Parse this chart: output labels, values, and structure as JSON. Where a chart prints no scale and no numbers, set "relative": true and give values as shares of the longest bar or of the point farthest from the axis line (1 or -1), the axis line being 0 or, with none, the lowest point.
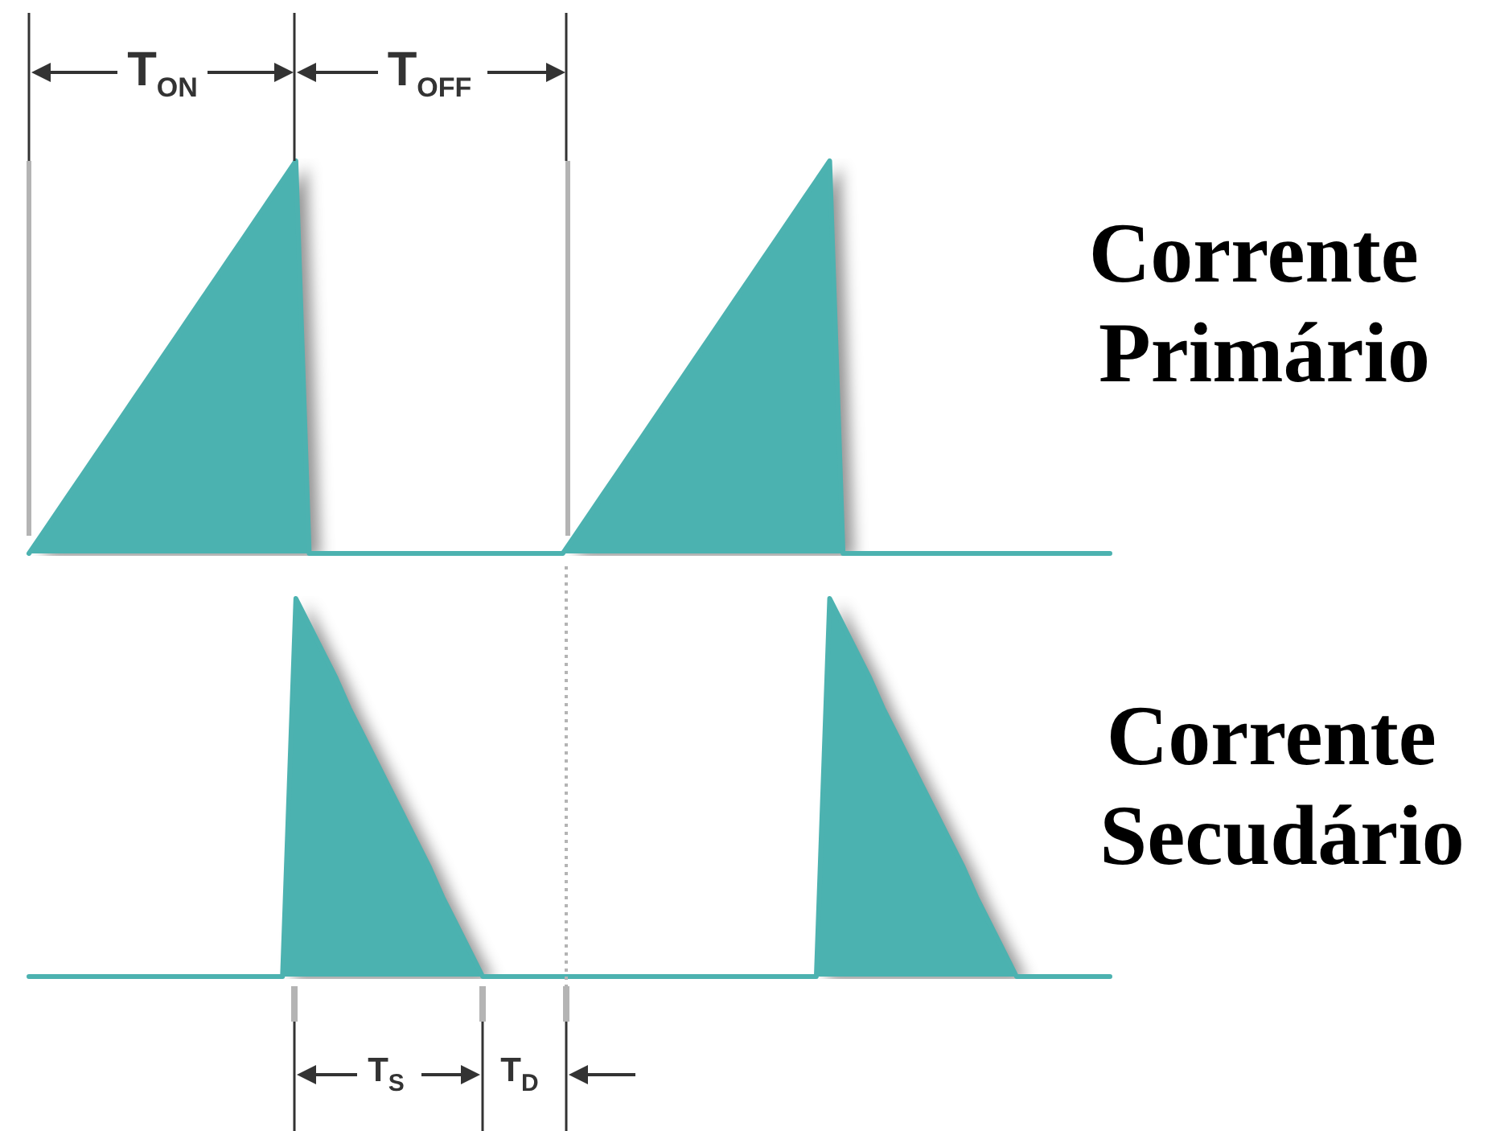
{
  "chart_data": [
    {
      "type": "area",
      "relative": true,
      "categories": [
        null,
        null,
        null,
        null,
        null,
        null,
        null,
        null,
        null,
        null,
        null,
        null,
        null,
        null,
        null,
        null,
        null,
        null,
        null,
        null,
        null,
        null,
        null,
        null,
        null,
        null,
        null,
        null,
        null,
        null,
        null,
        null,
        null,
        null,
        null,
        null,
        null,
        null,
        null,
        null,
        null,
        null,
        null,
        null,
        null,
        null,
        null,
        null,
        null,
        null,
        null,
        null,
        null,
        null,
        null,
        null,
        null,
        null,
        null,
        null,
        null,
        null,
        null,
        null,
        null,
        null,
        null,
        null,
        null,
        null,
        null,
        null,
        null,
        null,
        null,
        null,
        null,
        null,
        null,
        null,
        null,
        null
      ],
      "series": [
        {
          "name": "Corrente Primário",
          "color": "#4cb2b0",
          "values": [
            0,
            0.05,
            0.1,
            0.15,
            0.2,
            0.25,
            0.3,
            0.35,
            0.4,
            0.45,
            0.5,
            0.55,
            0.6,
            0.65,
            0.7,
            0.75,
            0.8,
            0.85,
            0.9,
            0.95,
            1,
            0,
            0,
            0,
            0,
            0,
            0,
            0,
            0,
            0,
            0,
            0,
            0,
            0,
            0,
            0,
            0,
            0,
            0,
            0,
            0,
            0.05,
            0.1,
            0.15,
            0.2,
            0.25,
            0.3,
            0.35,
            0.4,
            0.45,
            0.5,
            0.55,
            0.6,
            0.65,
            0.7,
            0.75,
            0.8,
            0.85,
            0.9,
            0.95,
            1,
            0,
            0,
            0,
            0,
            0,
            0,
            0,
            0,
            0,
            0,
            0,
            0,
            0,
            0,
            0,
            0,
            0,
            0,
            0,
            0,
            0
          ]
        }
      ],
      "annotations": [
        "T$_{ON}$",
        "T$_{OFF}$"
      ]
    },
    {
      "type": "area",
      "relative": true,
      "categories": [
        null,
        null,
        null,
        null,
        null,
        null,
        null,
        null,
        null,
        null,
        null,
        null,
        null,
        null,
        null,
        null,
        null,
        null,
        null,
        null,
        null,
        null,
        null,
        null,
        null,
        null,
        null,
        null,
        null,
        null,
        null,
        null,
        null,
        null,
        null,
        null,
        null,
        null,
        null,
        null,
        null,
        null,
        null,
        null,
        null,
        null,
        null,
        null,
        null,
        null,
        null,
        null,
        null,
        null,
        null,
        null,
        null,
        null,
        null,
        null,
        null,
        null,
        null,
        null,
        null,
        null,
        null,
        null,
        null,
        null,
        null,
        null,
        null,
        null,
        null,
        null,
        null,
        null,
        null,
        null,
        null,
        null
      ],
      "series": [
        {
          "name": "Corrente Secudário",
          "color": "#4cb2b0",
          "values": [
            0,
            0,
            0,
            0,
            0,
            0,
            0,
            0,
            0,
            0,
            0,
            0,
            0,
            0,
            0,
            0,
            0,
            0,
            0,
            0,
            1,
            0.93,
            0.86,
            0.79,
            0.71,
            0.64,
            0.57,
            0.5,
            0.43,
            0.36,
            0.29,
            0.21,
            0.14,
            0.07,
            0,
            0,
            0,
            0,
            0,
            0,
            0,
            0,
            0,
            0,
            0,
            0,
            0,
            0,
            0,
            0,
            0,
            0,
            0,
            0,
            0,
            0,
            0,
            0,
            0,
            0,
            1,
            0.93,
            0.86,
            0.79,
            0.71,
            0.64,
            0.57,
            0.5,
            0.43,
            0.36,
            0.29,
            0.21,
            0.14,
            0.07,
            0,
            0,
            0,
            0,
            0,
            0,
            0,
            0
          ]
        }
      ],
      "annotations": [
        "T$_{S}$",
        "T$_{D}$"
      ]
    }
  ]
}
